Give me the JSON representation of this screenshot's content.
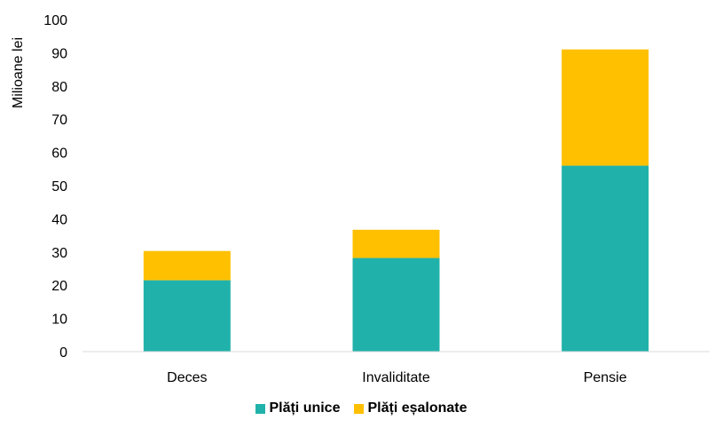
{
  "chart_data": {
    "type": "bar",
    "stacked": true,
    "categories": [
      "Deces",
      "Invaliditate",
      "Pensie"
    ],
    "series": [
      {
        "name": "Plăți unice",
        "values": [
          21.5,
          28.2,
          56.0
        ],
        "color": "#20B2AA"
      },
      {
        "name": "Plăți eșalonate",
        "values": [
          8.8,
          8.5,
          35.0
        ],
        "color": "#FFC000"
      }
    ],
    "title": "",
    "xlabel": "",
    "ylabel": "Milioane lei",
    "ylim": [
      0,
      100
    ],
    "yticks": [
      "0",
      "10",
      "20",
      "30",
      "40",
      "50",
      "60",
      "70",
      "80",
      "90",
      "100"
    ],
    "grid": false,
    "legend_position": "bottom"
  }
}
